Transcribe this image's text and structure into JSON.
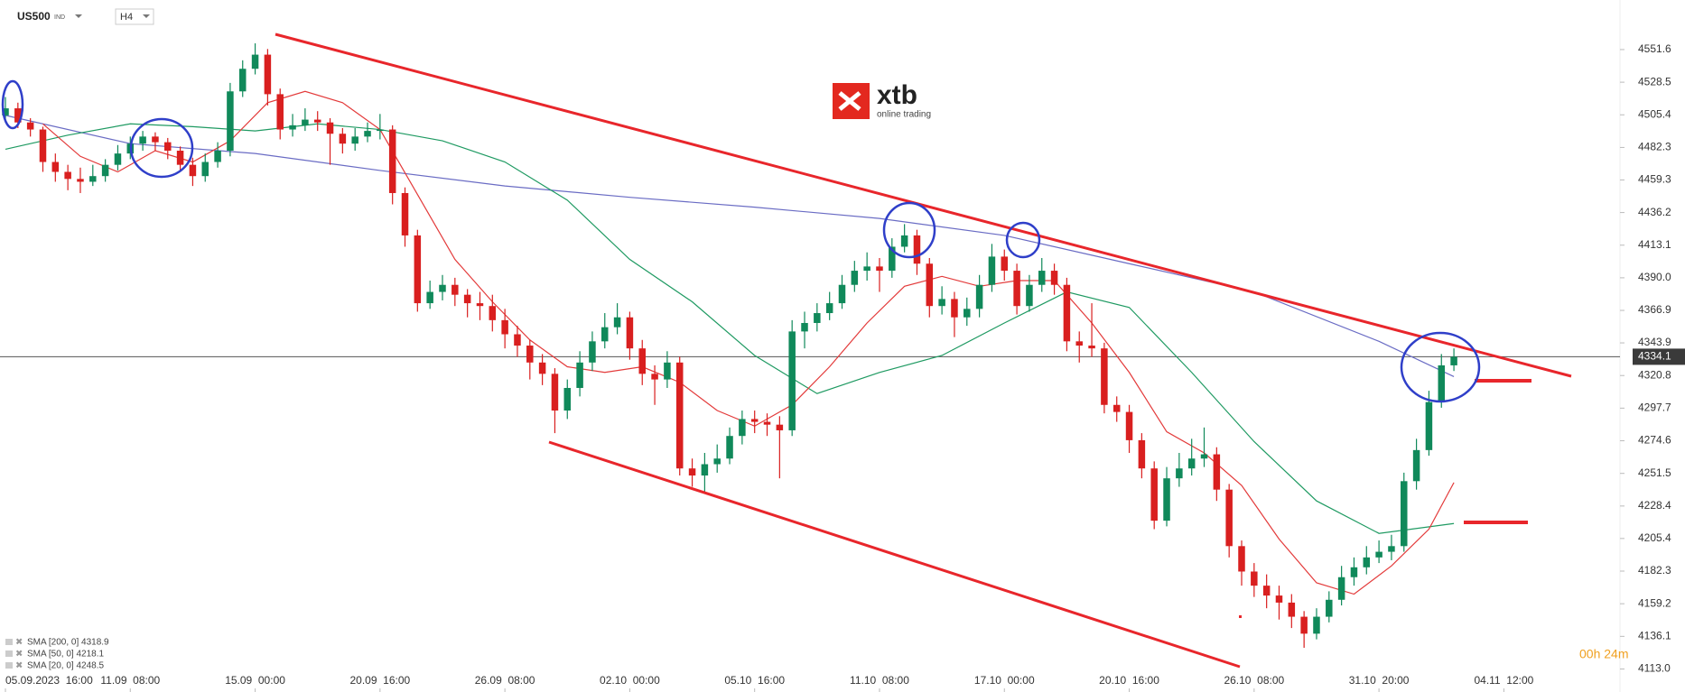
{
  "chart_data": {
    "type": "candlestick",
    "symbol": "US500",
    "market": "IND",
    "timeframe": "H4",
    "logo": "xtb",
    "logo_subtitle": "online trading",
    "countdown": "00h 24m",
    "current_price": 4334.1,
    "up_color": "#10895a",
    "down_color": "#d91f1f",
    "xlim": [
      0,
      129.3
    ],
    "xticks": [
      {
        "value": 0,
        "label": "05.09.2023  16:00"
      },
      {
        "value": 10,
        "label": "11.09  08:00"
      },
      {
        "value": 20,
        "label": "15.09  00:00"
      },
      {
        "value": 30,
        "label": "20.09  16:00"
      },
      {
        "value": 40,
        "label": "26.09  08:00"
      },
      {
        "value": 50,
        "label": "02.10  00:00"
      },
      {
        "value": 60,
        "label": "05.10  16:00"
      },
      {
        "value": 70,
        "label": "11.10  08:00"
      },
      {
        "value": 80,
        "label": "17.10  00:00"
      },
      {
        "value": 90,
        "label": "20.10  16:00"
      },
      {
        "value": 100,
        "label": "26.10  08:00"
      },
      {
        "value": 110,
        "label": "31.10  20:00"
      },
      {
        "value": 120,
        "label": "04.11  12:00"
      }
    ],
    "ylim": [
      4096.7,
      4586.7
    ],
    "yticks": [
      4551.6,
      4528.5,
      4505.4,
      4482.3,
      4459.3,
      4436.2,
      4413.1,
      {
        "value": 4390,
        "label": "4390.0"
      },
      4366.9,
      4343.9,
      4320.8,
      4297.7,
      4274.6,
      4251.5,
      4228.4,
      4205.4,
      4182.3,
      4159.2,
      4136.1,
      {
        "value": 4113,
        "label": "4113.0"
      }
    ],
    "candles": [
      [
        4505,
        4518,
        4500,
        4510
      ],
      [
        4510,
        4514,
        4496,
        4500
      ],
      [
        4500,
        4503,
        4490,
        4495
      ],
      [
        4495,
        4497,
        4465,
        4472
      ],
      [
        4472,
        4478,
        4458,
        4465
      ],
      [
        4465,
        4470,
        4452,
        4460
      ],
      [
        4460,
        4468,
        4450,
        4458
      ],
      [
        4458,
        4470,
        4455,
        4462
      ],
      [
        4462,
        4474,
        4458,
        4470
      ],
      [
        4470,
        4484,
        4466,
        4478
      ],
      [
        4478,
        4490,
        4474,
        4485
      ],
      [
        4485,
        4494,
        4480,
        4490
      ],
      [
        4490,
        4493,
        4480,
        4486
      ],
      [
        4486,
        4489,
        4474,
        4480
      ],
      [
        4480,
        4483,
        4465,
        4470
      ],
      [
        4470,
        4475,
        4455,
        4462
      ],
      [
        4462,
        4478,
        4458,
        4472
      ],
      [
        4472,
        4486,
        4468,
        4480
      ],
      [
        4480,
        4528,
        4476,
        4522
      ],
      [
        4522,
        4544,
        4518,
        4538
      ],
      [
        4538,
        4556,
        4534,
        4548
      ],
      [
        4548,
        4552,
        4512,
        4520
      ],
      [
        4520,
        4524,
        4488,
        4495
      ],
      [
        4495,
        4506,
        4490,
        4498
      ],
      [
        4498,
        4510,
        4494,
        4502
      ],
      [
        4502,
        4508,
        4494,
        4500
      ],
      [
        4500,
        4503,
        4470,
        4492
      ],
      [
        4492,
        4496,
        4478,
        4485
      ],
      [
        4485,
        4496,
        4480,
        4490
      ],
      [
        4490,
        4500,
        4486,
        4494
      ],
      [
        4494,
        4506,
        4488,
        4495
      ],
      [
        4495,
        4498,
        4442,
        4450
      ],
      [
        4450,
        4454,
        4412,
        4420
      ],
      [
        4420,
        4424,
        4366,
        4372
      ],
      [
        4372,
        4388,
        4368,
        4380
      ],
      [
        4380,
        4392,
        4374,
        4385
      ],
      [
        4385,
        4390,
        4370,
        4378
      ],
      [
        4378,
        4382,
        4362,
        4372
      ],
      [
        4372,
        4380,
        4360,
        4370
      ],
      [
        4370,
        4378,
        4352,
        4360
      ],
      [
        4360,
        4368,
        4340,
        4350
      ],
      [
        4350,
        4356,
        4334,
        4342
      ],
      [
        4342,
        4346,
        4318,
        4330
      ],
      [
        4330,
        4336,
        4314,
        4322
      ],
      [
        4322,
        4326,
        4280,
        4296
      ],
      [
        4296,
        4318,
        4290,
        4312
      ],
      [
        4312,
        4338,
        4306,
        4330
      ],
      [
        4330,
        4352,
        4324,
        4345
      ],
      [
        4345,
        4365,
        4340,
        4355
      ],
      [
        4355,
        4372,
        4350,
        4362
      ],
      [
        4362,
        4366,
        4332,
        4340
      ],
      [
        4340,
        4346,
        4314,
        4322
      ],
      [
        4322,
        4328,
        4300,
        4318
      ],
      [
        4318,
        4338,
        4312,
        4330
      ],
      [
        4330,
        4334,
        4250,
        4255
      ],
      [
        4255,
        4262,
        4242,
        4250
      ],
      [
        4250,
        4266,
        4238,
        4258
      ],
      [
        4258,
        4272,
        4252,
        4262
      ],
      [
        4262,
        4284,
        4258,
        4278
      ],
      [
        4278,
        4296,
        4272,
        4290
      ],
      [
        4290,
        4296,
        4280,
        4288
      ],
      [
        4288,
        4294,
        4278,
        4286
      ],
      [
        4286,
        4292,
        4248,
        4282
      ],
      [
        4282,
        4360,
        4278,
        4352
      ],
      [
        4352,
        4366,
        4340,
        4358
      ],
      [
        4358,
        4372,
        4352,
        4365
      ],
      [
        4365,
        4380,
        4360,
        4372
      ],
      [
        4372,
        4392,
        4368,
        4385
      ],
      [
        4385,
        4402,
        4380,
        4395
      ],
      [
        4395,
        4408,
        4388,
        4398
      ],
      [
        4398,
        4404,
        4380,
        4395
      ],
      [
        4395,
        4418,
        4390,
        4412
      ],
      [
        4412,
        4428,
        4408,
        4420
      ],
      [
        4420,
        4424,
        4392,
        4400
      ],
      [
        4400,
        4404,
        4362,
        4370
      ],
      [
        4370,
        4384,
        4364,
        4375
      ],
      [
        4375,
        4380,
        4348,
        4362
      ],
      [
        4362,
        4376,
        4356,
        4368
      ],
      [
        4368,
        4392,
        4362,
        4385
      ],
      [
        4385,
        4414,
        4380,
        4405
      ],
      [
        4405,
        4410,
        4388,
        4395
      ],
      [
        4395,
        4400,
        4364,
        4370
      ],
      [
        4370,
        4392,
        4366,
        4385
      ],
      [
        4385,
        4404,
        4380,
        4395
      ],
      [
        4395,
        4400,
        4378,
        4385
      ],
      [
        4385,
        4390,
        4338,
        4345
      ],
      [
        4345,
        4352,
        4330,
        4342
      ],
      [
        4342,
        4372,
        4334,
        4340
      ],
      [
        4340,
        4344,
        4294,
        4300
      ],
      [
        4300,
        4306,
        4288,
        4295
      ],
      [
        4295,
        4300,
        4266,
        4275
      ],
      [
        4275,
        4280,
        4248,
        4255
      ],
      [
        4255,
        4260,
        4212,
        4218
      ],
      [
        4218,
        4256,
        4214,
        4248
      ],
      [
        4248,
        4266,
        4242,
        4255
      ],
      [
        4255,
        4276,
        4250,
        4262
      ],
      [
        4262,
        4284,
        4256,
        4265
      ],
      [
        4265,
        4270,
        4232,
        4240
      ],
      [
        4240,
        4244,
        4192,
        4200
      ],
      [
        4200,
        4204,
        4172,
        4182
      ],
      [
        4182,
        4188,
        4164,
        4172
      ],
      [
        4172,
        4180,
        4156,
        4165
      ],
      [
        4165,
        4172,
        4148,
        4160
      ],
      [
        4160,
        4166,
        4142,
        4150
      ],
      [
        4150,
        4154,
        4128,
        4138
      ],
      [
        4138,
        4156,
        4134,
        4150
      ],
      [
        4150,
        4168,
        4146,
        4162
      ],
      [
        4162,
        4186,
        4158,
        4178
      ],
      [
        4178,
        4192,
        4172,
        4185
      ],
      [
        4185,
        4200,
        4180,
        4192
      ],
      [
        4192,
        4204,
        4188,
        4196
      ],
      [
        4196,
        4208,
        4190,
        4200
      ],
      [
        4200,
        4252,
        4196,
        4246
      ],
      [
        4246,
        4276,
        4240,
        4268
      ],
      [
        4268,
        4310,
        4264,
        4302
      ],
      [
        4302,
        4336,
        4298,
        4328
      ],
      [
        4328,
        4340,
        4324,
        4334.1
      ]
    ],
    "series": [
      {
        "name": "SMA [200, 0] 4318.9",
        "color": "#6a6cc4",
        "x": [
          0,
          10,
          20,
          30,
          40,
          50,
          60,
          70,
          80,
          90,
          100,
          110,
          116
        ],
        "values": [
          4505,
          4485,
          4478,
          4466,
          4455,
          4447,
          4440,
          4432,
          4420,
          4400,
          4380,
          4345,
          4320
        ]
      },
      {
        "name": "SMA [50, 0] 4218.1",
        "color": "#1f9a62",
        "x": [
          0,
          5,
          10,
          15,
          20,
          25,
          30,
          35,
          40,
          45,
          50,
          55,
          60,
          65,
          70,
          75,
          80,
          85,
          90,
          95,
          100,
          105,
          110,
          116
        ],
        "values": [
          4481,
          4491,
          4499,
          4497,
          4494,
          4499,
          4495,
          4487,
          4472,
          4445,
          4403,
          4373,
          4335,
          4308,
          4323,
          4335,
          4358,
          4380,
          4369,
          4323,
          4274,
          4232,
          4209,
          4216
        ]
      },
      {
        "name": "SMA [20, 0] 4248.5",
        "color": "#e33a3a",
        "x": [
          3,
          6,
          9,
          12,
          15,
          18,
          21,
          24,
          27,
          30,
          33,
          36,
          39,
          42,
          45,
          48,
          51,
          54,
          57,
          60,
          63,
          66,
          69,
          72,
          75,
          78,
          81,
          84,
          87,
          90,
          93,
          96,
          99,
          102,
          105,
          108,
          111,
          114,
          116
        ],
        "values": [
          4499,
          4476,
          4465,
          4480,
          4472,
          4487,
          4514,
          4522,
          4514,
          4495,
          4449,
          4403,
          4373,
          4346,
          4327,
          4323,
          4327,
          4316,
          4296,
          4285,
          4300,
          4327,
          4358,
          4384,
          4391,
          4384,
          4388,
          4388,
          4358,
          4323,
          4281,
          4266,
          4243,
          4205,
          4174,
          4166,
          4186,
          4212,
          4245
        ]
      }
    ]
  }
}
